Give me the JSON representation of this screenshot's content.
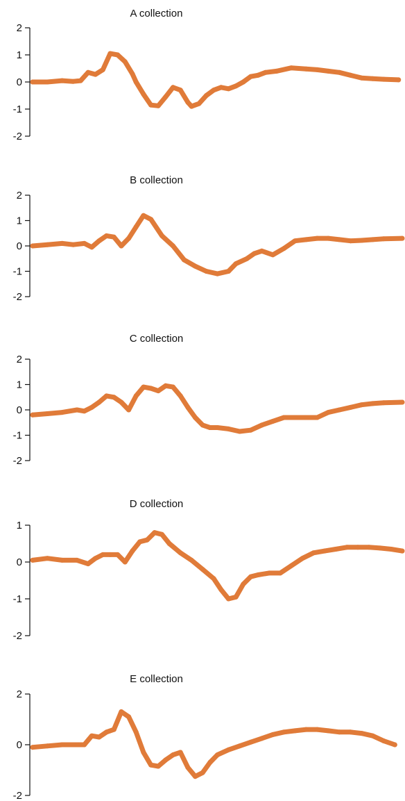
{
  "chart_data": [
    {
      "type": "line",
      "title": "A collection",
      "xlabel": "",
      "ylabel": "",
      "ylim": [
        -2,
        2
      ],
      "yticks": [
        -2,
        -1,
        0,
        1,
        2
      ],
      "xlim": [
        0,
        100
      ],
      "grid": false,
      "color": "#E07B39",
      "series": [
        {
          "x": [
            0,
            4,
            8,
            11,
            13,
            15,
            17,
            19,
            21,
            23,
            25,
            27,
            28,
            30,
            32,
            34,
            36,
            38,
            40,
            42,
            43,
            45,
            47,
            49,
            51,
            53,
            55,
            57,
            59,
            61,
            63,
            66,
            70,
            74,
            77,
            80,
            83,
            86,
            89,
            92,
            95,
            99
          ],
          "values": [
            0.0,
            0.0,
            0.05,
            0.02,
            0.05,
            0.35,
            0.28,
            0.45,
            1.05,
            1.0,
            0.75,
            0.3,
            0.0,
            -0.45,
            -0.85,
            -0.88,
            -0.55,
            -0.2,
            -0.3,
            -0.75,
            -0.9,
            -0.8,
            -0.5,
            -0.3,
            -0.2,
            -0.25,
            -0.15,
            0.0,
            0.2,
            0.25,
            0.35,
            0.4,
            0.52,
            0.48,
            0.45,
            0.4,
            0.35,
            0.25,
            0.15,
            0.12,
            0.1,
            0.08
          ]
        }
      ]
    },
    {
      "type": "line",
      "title": "B collection",
      "xlabel": "",
      "ylabel": "",
      "ylim": [
        -2,
        2
      ],
      "yticks": [
        -2,
        -1,
        0,
        1,
        2
      ],
      "xlim": [
        0,
        100
      ],
      "grid": false,
      "color": "#E07B39",
      "series": [
        {
          "x": [
            0,
            4,
            8,
            11,
            14,
            16,
            18,
            20,
            22,
            24,
            26,
            28,
            30,
            32,
            35,
            38,
            41,
            44,
            47,
            50,
            53,
            55,
            58,
            60,
            62,
            65,
            68,
            71,
            74,
            77,
            80,
            83,
            86,
            89,
            92,
            95,
            100
          ],
          "values": [
            0.0,
            0.05,
            0.1,
            0.05,
            0.1,
            -0.05,
            0.2,
            0.4,
            0.35,
            0.0,
            0.3,
            0.75,
            1.2,
            1.05,
            0.4,
            0.0,
            -0.55,
            -0.8,
            -1.0,
            -1.1,
            -1.0,
            -0.7,
            -0.5,
            -0.3,
            -0.2,
            -0.35,
            -0.1,
            0.2,
            0.25,
            0.3,
            0.3,
            0.25,
            0.2,
            0.22,
            0.25,
            0.28,
            0.3
          ]
        }
      ]
    },
    {
      "type": "line",
      "title": "C collection",
      "xlabel": "",
      "ylabel": "",
      "ylim": [
        -2,
        2
      ],
      "yticks": [
        -2,
        -1,
        0,
        1,
        2
      ],
      "xlim": [
        0,
        100
      ],
      "grid": false,
      "color": "#E07B39",
      "series": [
        {
          "x": [
            0,
            4,
            8,
            12,
            14,
            16,
            18,
            20,
            22,
            24,
            26,
            28,
            30,
            32,
            34,
            36,
            38,
            40,
            42,
            44,
            46,
            48,
            50,
            53,
            56,
            59,
            62,
            65,
            68,
            71,
            74,
            77,
            80,
            83,
            86,
            89,
            92,
            95,
            100
          ],
          "values": [
            -0.2,
            -0.15,
            -0.1,
            0.0,
            -0.05,
            0.1,
            0.3,
            0.55,
            0.5,
            0.3,
            0.0,
            0.55,
            0.9,
            0.85,
            0.75,
            0.95,
            0.9,
            0.55,
            0.1,
            -0.3,
            -0.6,
            -0.7,
            -0.7,
            -0.75,
            -0.85,
            -0.8,
            -0.6,
            -0.45,
            -0.3,
            -0.3,
            -0.3,
            -0.3,
            -0.1,
            0.0,
            0.1,
            0.2,
            0.25,
            0.28,
            0.3
          ]
        }
      ]
    },
    {
      "type": "line",
      "title": "D collection",
      "xlabel": "",
      "ylabel": "",
      "ylim": [
        -2,
        1
      ],
      "yticks": [
        -2,
        -1,
        0,
        1
      ],
      "xlim": [
        0,
        100
      ],
      "grid": false,
      "color": "#E07B39",
      "series": [
        {
          "x": [
            0,
            4,
            8,
            12,
            15,
            17,
            19,
            21,
            23,
            25,
            27,
            29,
            31,
            33,
            35,
            37,
            40,
            43,
            46,
            49,
            51,
            53,
            55,
            57,
            59,
            61,
            64,
            67,
            70,
            73,
            76,
            79,
            82,
            85,
            88,
            91,
            94,
            97,
            100
          ],
          "values": [
            0.05,
            0.1,
            0.05,
            0.05,
            -0.05,
            0.1,
            0.2,
            0.2,
            0.2,
            0.0,
            0.3,
            0.55,
            0.6,
            0.8,
            0.75,
            0.5,
            0.25,
            0.05,
            -0.2,
            -0.45,
            -0.75,
            -1.0,
            -0.95,
            -0.6,
            -0.4,
            -0.35,
            -0.3,
            -0.3,
            -0.1,
            0.1,
            0.25,
            0.3,
            0.35,
            0.4,
            0.4,
            0.4,
            0.38,
            0.35,
            0.3
          ]
        }
      ]
    },
    {
      "type": "line",
      "title": "E collection",
      "xlabel": "",
      "ylabel": "",
      "ylim": [
        -2,
        2
      ],
      "yticks": [
        -2,
        0,
        2
      ],
      "xlim": [
        0,
        100
      ],
      "grid": false,
      "color": "#E07B39",
      "series": [
        {
          "x": [
            0,
            4,
            8,
            12,
            14,
            16,
            18,
            20,
            22,
            24,
            26,
            28,
            30,
            32,
            34,
            36,
            38,
            40,
            42,
            44,
            46,
            48,
            50,
            53,
            56,
            59,
            62,
            65,
            68,
            71,
            74,
            77,
            80,
            83,
            86,
            89,
            92,
            95,
            98
          ],
          "values": [
            -0.1,
            -0.05,
            0.0,
            0.0,
            0.0,
            0.35,
            0.3,
            0.5,
            0.6,
            1.3,
            1.1,
            0.5,
            -0.3,
            -0.8,
            -0.85,
            -0.6,
            -0.4,
            -0.3,
            -0.9,
            -1.25,
            -1.1,
            -0.7,
            -0.4,
            -0.2,
            -0.05,
            0.1,
            0.25,
            0.4,
            0.5,
            0.55,
            0.6,
            0.6,
            0.55,
            0.5,
            0.5,
            0.45,
            0.35,
            0.15,
            0.0
          ]
        }
      ]
    }
  ]
}
